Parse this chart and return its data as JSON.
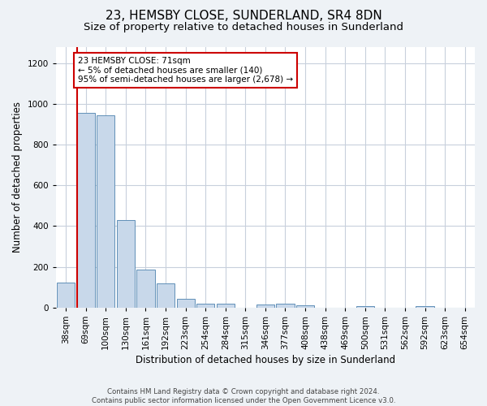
{
  "title": "23, HEMSBY CLOSE, SUNDERLAND, SR4 8DN",
  "subtitle": "Size of property relative to detached houses in Sunderland",
  "xlabel": "Distribution of detached houses by size in Sunderland",
  "ylabel": "Number of detached properties",
  "categories": [
    "38sqm",
    "69sqm",
    "100sqm",
    "130sqm",
    "161sqm",
    "192sqm",
    "223sqm",
    "254sqm",
    "284sqm",
    "315sqm",
    "346sqm",
    "377sqm",
    "408sqm",
    "438sqm",
    "469sqm",
    "500sqm",
    "531sqm",
    "562sqm",
    "592sqm",
    "623sqm",
    "654sqm"
  ],
  "values": [
    125,
    955,
    945,
    430,
    185,
    120,
    45,
    20,
    20,
    0,
    15,
    18,
    10,
    0,
    0,
    8,
    0,
    0,
    8,
    0,
    0
  ],
  "bar_color": "#c8d8ea",
  "bar_edge_color": "#6090b8",
  "marker_line_color": "#cc0000",
  "annotation_box_text": "23 HEMSBY CLOSE: 71sqm\n← 5% of detached houses are smaller (140)\n95% of semi-detached houses are larger (2,678) →",
  "annotation_box_color": "#cc0000",
  "ylim": [
    0,
    1280
  ],
  "yticks": [
    0,
    200,
    400,
    600,
    800,
    1000,
    1200
  ],
  "title_fontsize": 11,
  "subtitle_fontsize": 9.5,
  "axis_label_fontsize": 8.5,
  "tick_fontsize": 7.5,
  "annotation_fontsize": 7.5,
  "footer_text": "Contains HM Land Registry data © Crown copyright and database right 2024.\nContains public sector information licensed under the Open Government Licence v3.0.",
  "background_color": "#eef2f6",
  "plot_background_color": "#ffffff",
  "grid_color": "#c8d0dc"
}
